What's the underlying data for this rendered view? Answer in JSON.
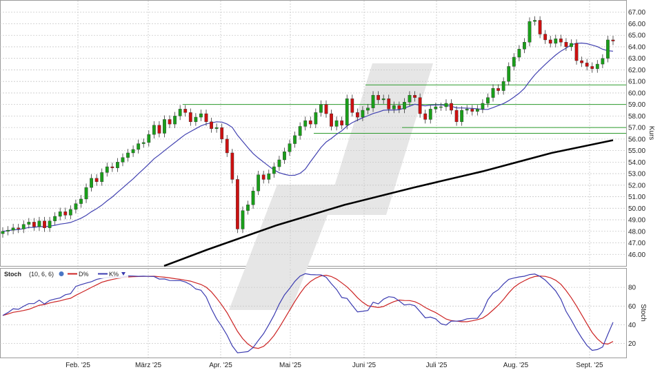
{
  "chart_data": [
    {
      "type": "candlestick",
      "ylabel": "Kurs",
      "ylim": [
        45.0,
        68.0
      ],
      "y_ticks": [
        "46.00",
        "47.00",
        "48.00",
        "49.00",
        "50.00",
        "51.00",
        "52.00",
        "53.00",
        "54.00",
        "55.00",
        "56.00",
        "57.00",
        "58.00",
        "59.00",
        "60.00",
        "61.00",
        "62.00",
        "63.00",
        "64.00",
        "65.00",
        "66.00",
        "67.00"
      ],
      "x_labels": [
        "Feb. '25",
        "März '25",
        "Apr. '25",
        "Mai '25",
        "Juni '25",
        "Juli '25",
        "Aug. '25",
        "Sept. '25"
      ],
      "colors": {
        "up": "#1a9e1a",
        "down": "#cc1111",
        "sma20": "#4040b0",
        "sma200": "#000000",
        "hline": "#2a9a2a",
        "grid": "#c8c8c8"
      },
      "support_resistance": [
        59.0,
        60.7,
        57.0,
        56.5
      ],
      "series": [
        {
          "kind": "candles",
          "points": [
            [
              0,
              48.0
            ],
            [
              1,
              48.1
            ],
            [
              2,
              48.3
            ],
            [
              3,
              48.2
            ],
            [
              4,
              48.6
            ],
            [
              5,
              48.8
            ],
            [
              6,
              48.4
            ],
            [
              7,
              48.9
            ],
            [
              8,
              48.3
            ],
            [
              9,
              48.9
            ],
            [
              10,
              49.3
            ],
            [
              11,
              49.7
            ],
            [
              12,
              49.4
            ],
            [
              13,
              49.9
            ],
            [
              14,
              50.4
            ],
            [
              15,
              50.8
            ],
            [
              16,
              51.8
            ],
            [
              17,
              52.6
            ],
            [
              18,
              52.3
            ],
            [
              19,
              53.1
            ],
            [
              20,
              53.6
            ],
            [
              21,
              53.5
            ],
            [
              22,
              54.0
            ],
            [
              23,
              54.4
            ],
            [
              24,
              54.8
            ],
            [
              25,
              55.1
            ],
            [
              26,
              55.6
            ],
            [
              27,
              55.7
            ],
            [
              28,
              56.4
            ],
            [
              29,
              57.2
            ],
            [
              30,
              56.5
            ],
            [
              31,
              57.7
            ],
            [
              32,
              57.3
            ],
            [
              33,
              58.0
            ],
            [
              34,
              58.6
            ],
            [
              35,
              58.3
            ],
            [
              36,
              57.5
            ],
            [
              37,
              57.9
            ],
            [
              38,
              58.2
            ],
            [
              39,
              57.5
            ],
            [
              40,
              56.9
            ],
            [
              41,
              57.0
            ],
            [
              42,
              56.0
            ],
            [
              43,
              54.8
            ],
            [
              44,
              52.5
            ],
            [
              45,
              48.2
            ],
            [
              46,
              49.8
            ],
            [
              47,
              50.3
            ],
            [
              48,
              51.5
            ],
            [
              49,
              52.9
            ],
            [
              50,
              52.5
            ],
            [
              51,
              53.0
            ],
            [
              52,
              53.6
            ],
            [
              53,
              54.2
            ],
            [
              54,
              54.9
            ],
            [
              55,
              55.6
            ],
            [
              56,
              56.3
            ],
            [
              57,
              57.1
            ],
            [
              58,
              57.6
            ],
            [
              59,
              57.3
            ],
            [
              60,
              58.3
            ],
            [
              61,
              59.0
            ],
            [
              62,
              58.2
            ],
            [
              63,
              57.1
            ],
            [
              64,
              57.6
            ],
            [
              65,
              57.2
            ],
            [
              66,
              59.5
            ],
            [
              67,
              58.3
            ],
            [
              68,
              57.9
            ],
            [
              69,
              58.5
            ],
            [
              70,
              58.7
            ],
            [
              71,
              59.8
            ],
            [
              72,
              59.4
            ],
            [
              73,
              59.5
            ],
            [
              74,
              58.6
            ],
            [
              75,
              58.9
            ],
            [
              76,
              58.6
            ],
            [
              77,
              59.2
            ],
            [
              78,
              59.8
            ],
            [
              79,
              59.6
            ],
            [
              80,
              58.2
            ],
            [
              81,
              57.7
            ],
            [
              82,
              58.6
            ],
            [
              83,
              58.8
            ],
            [
              84,
              58.8
            ],
            [
              85,
              59.1
            ],
            [
              86,
              58.5
            ],
            [
              87,
              57.5
            ],
            [
              88,
              58.5
            ],
            [
              89,
              58.6
            ],
            [
              90,
              58.4
            ],
            [
              91,
              58.6
            ],
            [
              92,
              59.1
            ],
            [
              93,
              59.6
            ],
            [
              94,
              60.4
            ],
            [
              95,
              60.2
            ],
            [
              96,
              61.0
            ],
            [
              97,
              62.3
            ],
            [
              98,
              63.1
            ],
            [
              99,
              63.8
            ],
            [
              100,
              64.4
            ],
            [
              101,
              66.2
            ],
            [
              102,
              66.3
            ],
            [
              103,
              65.1
            ],
            [
              104,
              64.6
            ],
            [
              105,
              64.3
            ],
            [
              106,
              64.7
            ],
            [
              107,
              64.4
            ],
            [
              108,
              64.0
            ],
            [
              109,
              64.3
            ],
            [
              110,
              62.8
            ],
            [
              111,
              62.6
            ],
            [
              112,
              62.3
            ],
            [
              113,
              62.1
            ],
            [
              114,
              62.5
            ],
            [
              115,
              63.0
            ],
            [
              116,
              64.6
            ],
            [
              117,
              64.5
            ]
          ]
        },
        {
          "kind": "line",
          "name": "SMA20"
        },
        {
          "kind": "line",
          "name": "SMA200"
        }
      ]
    },
    {
      "type": "line",
      "title": "Stoch",
      "params": "(10, 6, 6)",
      "ylabel": "Stoch",
      "ylim": [
        5,
        100
      ],
      "y_ticks": [
        "20",
        "40",
        "60",
        "80"
      ],
      "legend_items": [
        "D%",
        "K%"
      ],
      "colors": {
        "d": "#cc2222",
        "k": "#3a3ab0"
      },
      "series": [
        {
          "name": "D%",
          "values": []
        },
        {
          "name": "K%",
          "values": []
        }
      ]
    }
  ]
}
